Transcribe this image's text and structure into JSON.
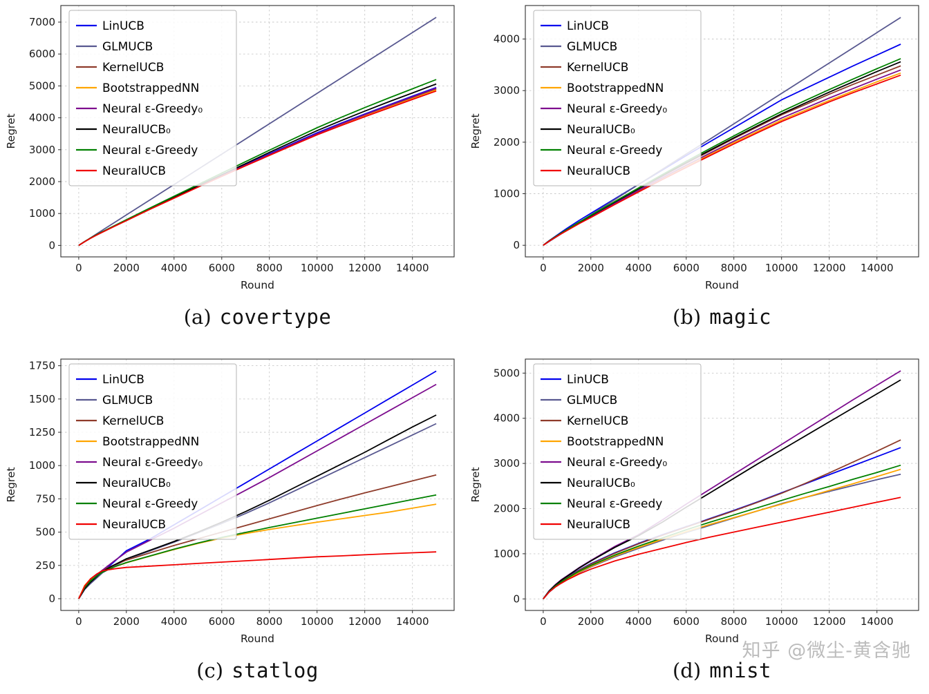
{
  "watermark": {
    "text": "知乎 @微尘-黄含驰"
  },
  "captions": [
    {
      "prefix": "(a)",
      "name": "covertype"
    },
    {
      "prefix": "(b)",
      "name": "magic"
    },
    {
      "prefix": "(c)",
      "name": "statlog"
    },
    {
      "prefix": "(d)",
      "name": "mnist"
    }
  ],
  "chart_data": [
    {
      "id": "covertype",
      "type": "line",
      "xlabel": "Round",
      "ylabel": "Regret",
      "grid": true,
      "legend_position": "upper left",
      "xlim": [
        -750,
        15750
      ],
      "ylim": [
        -360,
        7520
      ],
      "xticks": [
        0,
        2000,
        4000,
        6000,
        8000,
        10000,
        12000,
        14000
      ],
      "yticks": [
        0,
        1000,
        2000,
        3000,
        4000,
        5000,
        6000,
        7000
      ],
      "x": [
        0,
        250,
        500,
        750,
        1000,
        1500,
        2000,
        3000,
        4000,
        5000,
        6000,
        7000,
        8000,
        9000,
        10000,
        11000,
        12000,
        13000,
        14000,
        15000
      ],
      "series": [
        {
          "name": "LinUCB",
          "color": "#0000ee",
          "values": [
            0,
            120,
            230,
            330,
            425,
            610,
            790,
            1150,
            1500,
            1850,
            2190,
            2530,
            2870,
            3200,
            3530,
            3830,
            4120,
            4400,
            4680,
            4950
          ]
        },
        {
          "name": "GLMUCB",
          "color": "#585890",
          "values": [
            0,
            119,
            238,
            358,
            477,
            715,
            953,
            1430,
            1907,
            2383,
            2860,
            3337,
            3813,
            4290,
            4767,
            5243,
            5720,
            6197,
            6673,
            7150
          ]
        },
        {
          "name": "KernelUCB",
          "color": "#8e3b2a",
          "values": [
            0,
            118,
            228,
            328,
            420,
            605,
            785,
            1145,
            1495,
            1840,
            2180,
            2510,
            2840,
            3170,
            3490,
            3790,
            4080,
            4360,
            4630,
            4900
          ]
        },
        {
          "name": "BootstrappedNN",
          "color": "#ffa500",
          "values": [
            0,
            117,
            226,
            325,
            418,
            600,
            780,
            1140,
            1485,
            1830,
            2170,
            2500,
            2825,
            3150,
            3470,
            3770,
            4055,
            4330,
            4600,
            4870
          ]
        },
        {
          "name": "Neural ε-Greedy₀",
          "color": "#7d0d8e",
          "values": [
            0,
            118,
            228,
            328,
            421,
            606,
            786,
            1146,
            1496,
            1842,
            2183,
            2515,
            2848,
            3178,
            3500,
            3805,
            4098,
            4380,
            4655,
            4930
          ]
        },
        {
          "name": "NeuralUCB₀",
          "color": "#000000",
          "values": [
            0,
            119,
            230,
            331,
            425,
            612,
            795,
            1158,
            1512,
            1865,
            2215,
            2565,
            2915,
            3258,
            3598,
            3910,
            4210,
            4500,
            4780,
            5060
          ]
        },
        {
          "name": "Neural ε-Greedy",
          "color": "#008000",
          "values": [
            0,
            120,
            232,
            334,
            430,
            618,
            805,
            1175,
            1540,
            1905,
            2265,
            2625,
            2985,
            3338,
            3688,
            4010,
            4320,
            4620,
            4910,
            5200
          ]
        },
        {
          "name": "NeuralUCB",
          "color": "#f00000",
          "values": [
            0,
            116,
            224,
            322,
            415,
            598,
            775,
            1135,
            1480,
            1825,
            2165,
            2495,
            2820,
            3145,
            3465,
            3755,
            4035,
            4305,
            4575,
            4840
          ]
        }
      ]
    },
    {
      "id": "magic",
      "type": "line",
      "xlabel": "Round",
      "ylabel": "Regret",
      "grid": true,
      "legend_position": "upper left",
      "xlim": [
        -750,
        15750
      ],
      "ylim": [
        -225,
        4650
      ],
      "xticks": [
        0,
        2000,
        4000,
        6000,
        8000,
        10000,
        12000,
        14000
      ],
      "yticks": [
        0,
        1000,
        2000,
        3000,
        4000
      ],
      "x": [
        0,
        250,
        500,
        750,
        1000,
        1500,
        2000,
        3000,
        4000,
        5000,
        6000,
        7000,
        8000,
        9000,
        10000,
        11000,
        12000,
        13000,
        14000,
        15000
      ],
      "series": [
        {
          "name": "LinUCB",
          "color": "#0000ee",
          "values": [
            0,
            90,
            170,
            250,
            330,
            480,
            620,
            900,
            1180,
            1460,
            1740,
            2010,
            2280,
            2550,
            2820,
            3040,
            3260,
            3480,
            3690,
            3900
          ]
        },
        {
          "name": "GLMUCB",
          "color": "#585890",
          "values": [
            0,
            74,
            147,
            221,
            295,
            442,
            590,
            885,
            1180,
            1475,
            1770,
            2060,
            2355,
            2650,
            2945,
            3240,
            3535,
            3830,
            4125,
            4420
          ]
        },
        {
          "name": "KernelUCB",
          "color": "#8e3b2a",
          "values": [
            0,
            85,
            160,
            232,
            300,
            440,
            570,
            830,
            1090,
            1340,
            1590,
            1830,
            2070,
            2300,
            2530,
            2730,
            2930,
            3120,
            3300,
            3480
          ]
        },
        {
          "name": "BootstrappedNN",
          "color": "#ffa500",
          "values": [
            0,
            82,
            155,
            225,
            290,
            425,
            550,
            800,
            1050,
            1290,
            1530,
            1760,
            1990,
            2210,
            2430,
            2620,
            2810,
            2990,
            3170,
            3340
          ]
        },
        {
          "name": "Neural ε-Greedy₀",
          "color": "#7d0d8e",
          "values": [
            0,
            83,
            157,
            228,
            294,
            430,
            558,
            812,
            1065,
            1310,
            1552,
            1788,
            2020,
            2245,
            2468,
            2662,
            2855,
            3040,
            3222,
            3400
          ]
        },
        {
          "name": "NeuralUCB₀",
          "color": "#000000",
          "values": [
            0,
            85,
            160,
            233,
            300,
            440,
            572,
            835,
            1095,
            1350,
            1600,
            1845,
            2085,
            2320,
            2550,
            2760,
            2970,
            3170,
            3370,
            3560
          ]
        },
        {
          "name": "Neural ε-Greedy",
          "color": "#008000",
          "values": [
            0,
            86,
            162,
            236,
            305,
            447,
            580,
            848,
            1112,
            1372,
            1628,
            1878,
            2122,
            2362,
            2596,
            2810,
            3020,
            3225,
            3425,
            3620
          ]
        },
        {
          "name": "NeuralUCB",
          "color": "#f00000",
          "values": [
            0,
            81,
            152,
            221,
            285,
            418,
            540,
            790,
            1035,
            1275,
            1510,
            1740,
            1965,
            2185,
            2400,
            2590,
            2780,
            2960,
            3130,
            3300
          ]
        }
      ]
    },
    {
      "id": "statlog",
      "type": "line",
      "xlabel": "Round",
      "ylabel": "Regret",
      "grid": true,
      "legend_position": "upper left",
      "xlim": [
        -750,
        15750
      ],
      "ylim": [
        -88,
        1800
      ],
      "xticks": [
        0,
        2000,
        4000,
        6000,
        8000,
        10000,
        12000,
        14000
      ],
      "yticks": [
        0,
        250,
        500,
        750,
        1000,
        1250,
        1500,
        1750
      ],
      "x": [
        0,
        250,
        500,
        750,
        1000,
        1500,
        2000,
        3000,
        4000,
        5000,
        6000,
        7000,
        8000,
        9000,
        10000,
        11000,
        12000,
        13000,
        14000,
        15000
      ],
      "series": [
        {
          "name": "LinUCB",
          "color": "#0000ee",
          "values": [
            0,
            70,
            120,
            160,
            200,
            280,
            360,
            450,
            555,
            660,
            765,
            870,
            975,
            1080,
            1185,
            1290,
            1395,
            1500,
            1605,
            1710
          ]
        },
        {
          "name": "GLMUCB",
          "color": "#585890",
          "values": [
            0,
            70,
            115,
            155,
            195,
            245,
            295,
            360,
            425,
            495,
            565,
            640,
            720,
            805,
            890,
            975,
            1060,
            1145,
            1230,
            1315
          ]
        },
        {
          "name": "KernelUCB",
          "color": "#8e3b2a",
          "values": [
            0,
            90,
            140,
            180,
            215,
            255,
            290,
            345,
            400,
            450,
            500,
            550,
            600,
            650,
            700,
            748,
            795,
            840,
            885,
            930
          ]
        },
        {
          "name": "BootstrappedNN",
          "color": "#ffa500",
          "values": [
            0,
            100,
            150,
            180,
            205,
            240,
            270,
            320,
            370,
            415,
            455,
            490,
            520,
            548,
            575,
            600,
            625,
            650,
            680,
            710
          ]
        },
        {
          "name": "Neural ε-Greedy₀",
          "color": "#7d0d8e",
          "values": [
            0,
            80,
            130,
            175,
            215,
            285,
            350,
            440,
            530,
            625,
            720,
            815,
            910,
            1010,
            1110,
            1210,
            1310,
            1410,
            1510,
            1610
          ]
        },
        {
          "name": "NeuralUCB₀",
          "color": "#000000",
          "values": [
            0,
            75,
            125,
            165,
            205,
            255,
            300,
            365,
            430,
            500,
            575,
            655,
            740,
            830,
            920,
            1010,
            1100,
            1195,
            1290,
            1380
          ]
        },
        {
          "name": "Neural ε-Greedy",
          "color": "#008000",
          "values": [
            0,
            85,
            135,
            170,
            200,
            240,
            272,
            322,
            372,
            418,
            460,
            498,
            535,
            570,
            605,
            640,
            675,
            710,
            745,
            780
          ]
        },
        {
          "name": "NeuralUCB",
          "color": "#f00000",
          "values": [
            0,
            95,
            150,
            185,
            210,
            225,
            235,
            245,
            255,
            265,
            275,
            285,
            295,
            305,
            315,
            322,
            330,
            338,
            345,
            352
          ]
        }
      ]
    },
    {
      "id": "mnist",
      "type": "line",
      "xlabel": "Round",
      "ylabel": "Regret",
      "grid": true,
      "legend_position": "upper left",
      "xlim": [
        -750,
        15750
      ],
      "ylim": [
        -255,
        5310
      ],
      "xticks": [
        0,
        2000,
        4000,
        6000,
        8000,
        10000,
        12000,
        14000
      ],
      "yticks": [
        0,
        1000,
        2000,
        3000,
        4000,
        5000
      ],
      "x": [
        0,
        250,
        500,
        750,
        1000,
        1500,
        2000,
        3000,
        4000,
        5000,
        6000,
        7000,
        8000,
        9000,
        10000,
        11000,
        12000,
        13000,
        14000,
        15000
      ],
      "series": [
        {
          "name": "LinUCB",
          "color": "#0000ee",
          "values": [
            0,
            180,
            300,
            400,
            480,
            640,
            780,
            1020,
            1230,
            1420,
            1600,
            1780,
            1960,
            2150,
            2350,
            2550,
            2750,
            2950,
            3150,
            3350
          ]
        },
        {
          "name": "GLMUCB",
          "color": "#585890",
          "values": [
            0,
            150,
            260,
            350,
            430,
            580,
            710,
            930,
            1120,
            1300,
            1470,
            1630,
            1790,
            1950,
            2110,
            2250,
            2380,
            2510,
            2640,
            2760
          ]
        },
        {
          "name": "KernelUCB",
          "color": "#8e3b2a",
          "values": [
            0,
            170,
            290,
            390,
            470,
            630,
            770,
            1010,
            1220,
            1410,
            1590,
            1770,
            1950,
            2140,
            2340,
            2560,
            2790,
            3030,
            3270,
            3520
          ]
        },
        {
          "name": "BootstrappedNN",
          "color": "#ffa500",
          "values": [
            0,
            160,
            270,
            360,
            440,
            590,
            720,
            950,
            1140,
            1320,
            1490,
            1650,
            1800,
            1950,
            2100,
            2250,
            2400,
            2550,
            2710,
            2870
          ]
        },
        {
          "name": "Neural ε-Greedy₀",
          "color": "#7d0d8e",
          "values": [
            0,
            180,
            310,
            420,
            510,
            690,
            850,
            1160,
            1420,
            1750,
            2100,
            2430,
            2760,
            3090,
            3420,
            3750,
            4080,
            4410,
            4730,
            5050
          ]
        },
        {
          "name": "NeuralUCB₀",
          "color": "#000000",
          "values": [
            0,
            175,
            300,
            410,
            500,
            680,
            840,
            1140,
            1400,
            1700,
            2030,
            2350,
            2670,
            2990,
            3300,
            3610,
            3920,
            4230,
            4540,
            4850
          ]
        },
        {
          "name": "Neural ε-Greedy",
          "color": "#008000",
          "values": [
            0,
            165,
            280,
            375,
            455,
            610,
            740,
            970,
            1170,
            1350,
            1530,
            1700,
            1860,
            2020,
            2180,
            2340,
            2490,
            2650,
            2800,
            2960
          ]
        },
        {
          "name": "NeuralUCB",
          "color": "#f00000",
          "values": [
            0,
            155,
            260,
            345,
            420,
            550,
            660,
            840,
            990,
            1120,
            1250,
            1370,
            1480,
            1590,
            1700,
            1810,
            1920,
            2030,
            2140,
            2250
          ]
        }
      ]
    }
  ]
}
